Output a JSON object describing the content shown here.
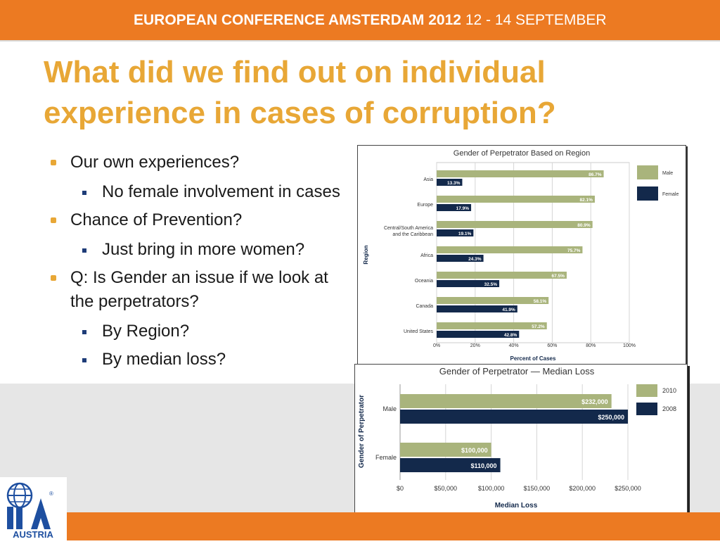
{
  "header": {
    "conference": "EUROPEAN CONFERENCE AMSTERDAM 2012",
    "dates": "12 - 14 SEPTEMBER"
  },
  "title": {
    "line1": "What did we find out on individual",
    "line2": "experience in cases of corruption?"
  },
  "bullets": [
    {
      "level": 1,
      "text": "Our own experiences?"
    },
    {
      "level": 2,
      "text": "No female involvement in cases"
    },
    {
      "level": 1,
      "text": "Chance of Prevention?"
    },
    {
      "level": 2,
      "text": "Just bring in more women?"
    },
    {
      "level": 1,
      "text": "Q: Is Gender an issue if we look at the perpetrators?"
    },
    {
      "level": 2,
      "text": "By Region?"
    },
    {
      "level": 2,
      "text": "By median loss?"
    }
  ],
  "logo": {
    "text": "AUSTRIA",
    "mark": "IIA"
  },
  "colors": {
    "orange": "#ec7a22",
    "title": "#e8a736",
    "series_light": "#a9b47c",
    "series_dark": "#13294b"
  },
  "chart_data": [
    {
      "type": "bar",
      "orientation": "horizontal",
      "title": "Gender of Perpetrator Based on Region",
      "xlabel": "Percent of Cases",
      "ylabel": "Region",
      "categories": [
        "Asia",
        "Europe",
        "Central/South America and the Caribbean",
        "Africa",
        "Oceania",
        "Canada",
        "United States"
      ],
      "series": [
        {
          "name": "Male",
          "values": [
            86.7,
            82.1,
            80.9,
            75.7,
            67.5,
            58.1,
            57.2
          ],
          "labels": [
            "86.7%",
            "82.1%",
            "80.9%",
            "75.7%",
            "67.5%",
            "58.1%",
            "57.2%"
          ]
        },
        {
          "name": "Female",
          "values": [
            13.3,
            17.9,
            19.1,
            24.3,
            32.5,
            41.9,
            42.8
          ],
          "labels": [
            "13.3%",
            "17.9%",
            "19.1%",
            "24.3%",
            "32.5%",
            "41.9%",
            "42.8%"
          ]
        }
      ],
      "xlim": [
        0,
        100
      ],
      "xticks": [
        "0%",
        "20%",
        "40%",
        "60%",
        "80%",
        "100%"
      ],
      "grid": true,
      "legend": "right"
    },
    {
      "type": "bar",
      "orientation": "horizontal",
      "title": "Gender of Perpetrator — Median Loss",
      "xlabel": "Median Loss",
      "ylabel": "Gender of Perpetrator",
      "categories": [
        "Male",
        "Female"
      ],
      "series": [
        {
          "name": "2010",
          "values": [
            232000,
            100000
          ],
          "labels": [
            "$232,000",
            "$100,000"
          ]
        },
        {
          "name": "2008",
          "values": [
            250000,
            110000
          ],
          "labels": [
            "$250,000",
            "$110,000"
          ]
        }
      ],
      "xlim": [
        0,
        250000
      ],
      "xticks": [
        "$0",
        "$50,000",
        "$100,000",
        "$150,000",
        "$200,000",
        "$250,000"
      ],
      "grid": true,
      "legend": "right"
    }
  ]
}
